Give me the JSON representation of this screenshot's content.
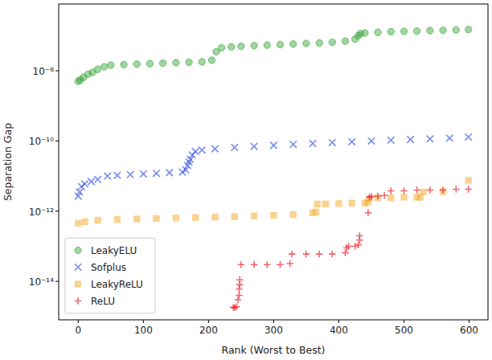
{
  "chart_data": {
    "type": "scatter",
    "x_label": "Rank (Worst to Best)",
    "y_label": "Separation Gap",
    "log": "y",
    "legend": "lower left",
    "xlim": [
      -30,
      629
    ],
    "xticks": [
      0,
      100,
      200,
      300,
      400,
      500,
      600
    ],
    "ylim": [
      8e-16,
      8e-07
    ],
    "yticks": [
      {
        "value": 1e-14,
        "label": "10⁻¹⁴"
      },
      {
        "value": 1e-12,
        "label": "10⁻¹²"
      },
      {
        "value": 1e-10,
        "label": "10⁻¹⁰"
      },
      {
        "value": 1e-08,
        "label": "10⁻⁸"
      }
    ],
    "series": [
      {
        "name": "LeakyELU",
        "color": "#2ca02c",
        "marker": "circle",
        "x": [
          0,
          3,
          8,
          15,
          22,
          30,
          40,
          50,
          70,
          90,
          110,
          130,
          150,
          170,
          190,
          205,
          212,
          220,
          235,
          250,
          270,
          290,
          310,
          330,
          350,
          370,
          390,
          410,
          425,
          430,
          433,
          440,
          460,
          480,
          500,
          520,
          540,
          560,
          580,
          599
        ],
        "values": [
          5e-09,
          5.5e-09,
          6.5e-09,
          8e-09,
          9e-09,
          1.1e-08,
          1.3e-08,
          1.45e-08,
          1.5e-08,
          1.55e-08,
          1.6e-08,
          1.65e-08,
          1.7e-08,
          1.75e-08,
          1.8e-08,
          2e-08,
          3.5e-08,
          4.5e-08,
          4.8e-08,
          5e-08,
          5.2e-08,
          5.4e-08,
          5.6e-08,
          5.8e-08,
          6e-08,
          6.2e-08,
          6.5e-08,
          7e-08,
          8e-08,
          1e-07,
          1.15e-07,
          1.2e-07,
          1.25e-07,
          1.3e-07,
          1.33e-07,
          1.36e-07,
          1.4e-07,
          1.43e-07,
          1.46e-07,
          1.5e-07
        ]
      },
      {
        "name": "Sofplus",
        "color": "#1f3fe0",
        "marker": "x",
        "x": [
          0,
          2,
          5,
          10,
          20,
          30,
          45,
          60,
          80,
          100,
          120,
          140,
          160,
          165,
          168,
          170,
          172,
          175,
          180,
          190,
          210,
          240,
          270,
          300,
          330,
          360,
          390,
          420,
          450,
          480,
          510,
          540,
          570,
          599
        ],
        "values": [
          2.7e-12,
          3.5e-12,
          5e-12,
          6e-12,
          7e-12,
          8e-12,
          1e-11,
          1.05e-11,
          1.1e-11,
          1.15e-11,
          1.2e-11,
          1.25e-11,
          1.3e-11,
          1.5e-11,
          2e-11,
          2.5e-11,
          3e-11,
          4e-11,
          5e-11,
          5.5e-11,
          6e-11,
          6.5e-11,
          7e-11,
          7.5e-11,
          8e-11,
          8.5e-11,
          9e-11,
          9.5e-11,
          1e-10,
          1.05e-10,
          1.1e-10,
          1.15e-10,
          1.2e-10,
          1.3e-10
        ]
      },
      {
        "name": "LeakyReLU",
        "color": "#f5a623",
        "marker": "square",
        "x": [
          0,
          10,
          30,
          60,
          90,
          120,
          150,
          180,
          210,
          240,
          270,
          300,
          330,
          360,
          365,
          367,
          380,
          400,
          420,
          440,
          445,
          447,
          460,
          480,
          500,
          520,
          525,
          530,
          560,
          599
        ],
        "values": [
          4.5e-13,
          5e-13,
          5.5e-13,
          5.8e-13,
          6e-13,
          6.2e-13,
          6.4e-13,
          6.6e-13,
          6.8e-13,
          7e-13,
          7.3e-13,
          7.6e-13,
          8e-13,
          9e-13,
          9.5e-13,
          1.6e-12,
          1.6e-12,
          1.65e-12,
          1.7e-12,
          1.7e-12,
          1.8e-12,
          2.3e-12,
          2.4e-12,
          2.4e-12,
          2.5e-12,
          2.5e-12,
          2.5e-12,
          3.5e-12,
          3.6e-12,
          7.5e-12
        ]
      },
      {
        "name": "ReLU",
        "color": "#e8141e",
        "marker": "plus",
        "x": [
          238,
          240,
          243,
          245,
          247,
          247,
          248,
          248,
          250,
          270,
          290,
          310,
          325,
          328,
          350,
          370,
          390,
          410,
          412,
          415,
          425,
          430,
          432,
          432,
          445,
          447,
          450,
          460,
          470,
          480,
          500,
          520,
          540,
          560,
          580,
          599
        ],
        "values": [
          1.8e-15,
          1.8e-15,
          1.9e-15,
          3e-15,
          4e-15,
          6e-15,
          8e-15,
          1.1e-14,
          3e-14,
          3e-14,
          3e-14,
          3e-14,
          3.2e-14,
          6e-14,
          6e-14,
          6e-14,
          6e-14,
          6.5e-14,
          9e-14,
          1e-13,
          1e-13,
          1.1e-13,
          1.5e-13,
          2e-13,
          9e-13,
          2.5e-12,
          2.6e-12,
          2.7e-12,
          2.8e-12,
          3.8e-12,
          3.8e-12,
          4e-12,
          4e-12,
          4e-12,
          4.2e-12,
          4.2e-12
        ]
      }
    ]
  }
}
